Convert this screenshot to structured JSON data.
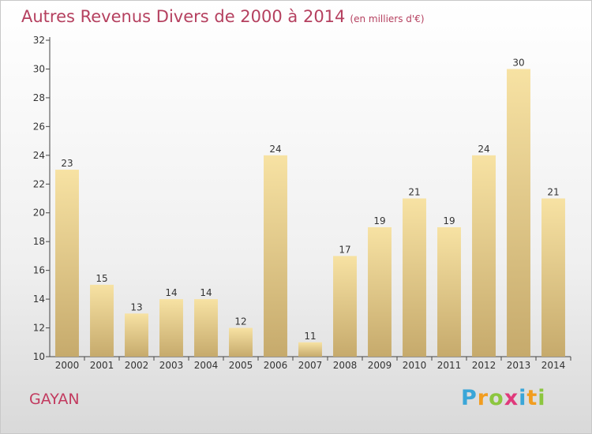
{
  "header": {
    "title": "Autres Revenus Divers de 2000 à 2014",
    "unit": "(en milliers d'€)"
  },
  "footer": {
    "place": "GAYAN",
    "logo": [
      "P",
      "r",
      "o",
      "x",
      "i",
      "t",
      "i"
    ]
  },
  "colors": {
    "title": "#b5405f",
    "place": "#c23a5f",
    "bar_light": "#f7e2a3",
    "bar_dark": "#c6aa6c",
    "logo": [
      "#3aa6d8",
      "#f29d1f",
      "#8cc63f",
      "#e0397b",
      "#3aa6d8",
      "#f29d1f",
      "#8cc63f"
    ]
  },
  "chart_data": {
    "type": "bar",
    "title": "Autres Revenus Divers de 2000 à 2014",
    "subtitle": "(en milliers d'€)",
    "categories": [
      "2000",
      "2001",
      "2002",
      "2003",
      "2004",
      "2005",
      "2006",
      "2007",
      "2008",
      "2009",
      "2010",
      "2011",
      "2012",
      "2013",
      "2014"
    ],
    "values": [
      23,
      15,
      13,
      14,
      14,
      12,
      24,
      11,
      17,
      19,
      21,
      19,
      24,
      30,
      21
    ],
    "ylim": [
      10,
      32
    ],
    "yticks": [
      10,
      12,
      14,
      16,
      18,
      20,
      22,
      24,
      26,
      28,
      30,
      32
    ],
    "grid": false,
    "data_labels": true
  }
}
